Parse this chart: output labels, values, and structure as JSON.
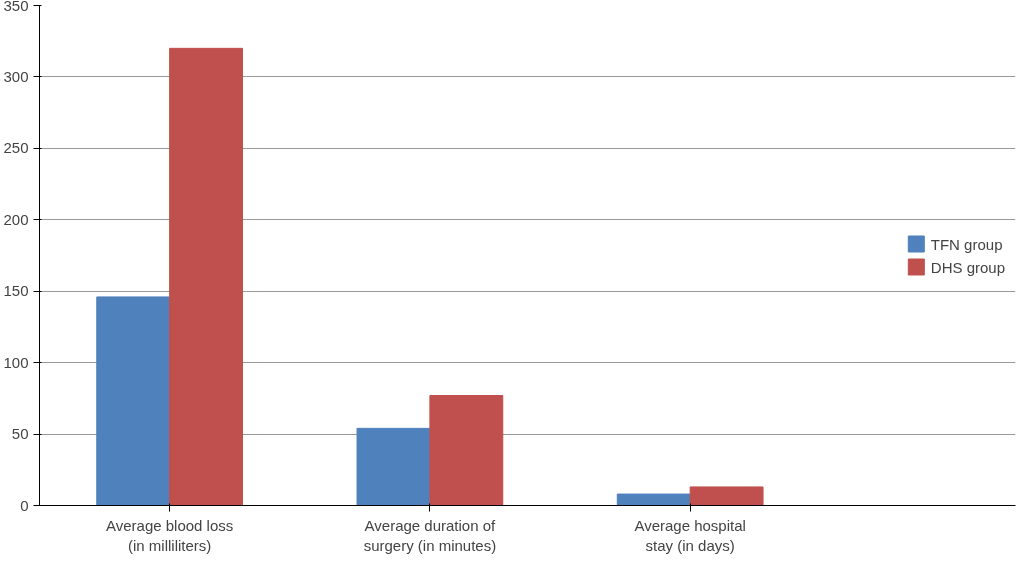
{
  "chart_data": {
    "type": "bar",
    "categories": [
      "Average blood loss (in milliliters)",
      "Average duration of surgery (in minutes)",
      "Average hospital stay (in days)"
    ],
    "series": [
      {
        "name": "TFN group",
        "color": "#4f81bd",
        "values": [
          146,
          54,
          8
        ]
      },
      {
        "name": "DHS group",
        "color": "#c0504d",
        "values": [
          320,
          77,
          13
        ]
      }
    ],
    "ylim": [
      0,
      350
    ],
    "yticks": [
      0,
      50,
      100,
      150,
      200,
      250,
      300,
      350
    ],
    "grid": "y",
    "legend": "right"
  }
}
